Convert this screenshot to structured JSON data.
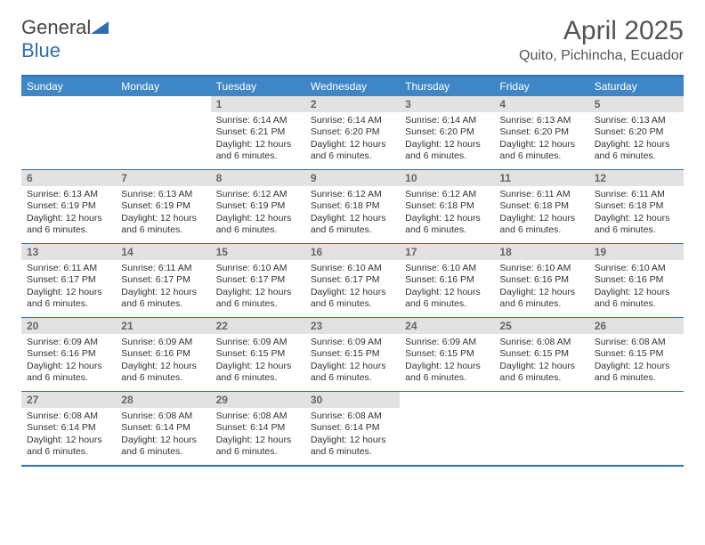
{
  "logo": {
    "part1": "General",
    "part2": "Blue"
  },
  "title": "April 2025",
  "location": "Quito, Pichincha, Ecuador",
  "colors": {
    "header_bg": "#3e86c6",
    "border": "#2f6fb0",
    "daynum_bg": "#e2e2e2",
    "text": "#333333",
    "muted": "#666666"
  },
  "day_headers": [
    "Sunday",
    "Monday",
    "Tuesday",
    "Wednesday",
    "Thursday",
    "Friday",
    "Saturday"
  ],
  "weeks": [
    [
      {
        "day": "",
        "sunrise": "",
        "sunset": "",
        "daylight": ""
      },
      {
        "day": "",
        "sunrise": "",
        "sunset": "",
        "daylight": ""
      },
      {
        "day": "1",
        "sunrise": "Sunrise: 6:14 AM",
        "sunset": "Sunset: 6:21 PM",
        "daylight": "Daylight: 12 hours and 6 minutes."
      },
      {
        "day": "2",
        "sunrise": "Sunrise: 6:14 AM",
        "sunset": "Sunset: 6:20 PM",
        "daylight": "Daylight: 12 hours and 6 minutes."
      },
      {
        "day": "3",
        "sunrise": "Sunrise: 6:14 AM",
        "sunset": "Sunset: 6:20 PM",
        "daylight": "Daylight: 12 hours and 6 minutes."
      },
      {
        "day": "4",
        "sunrise": "Sunrise: 6:13 AM",
        "sunset": "Sunset: 6:20 PM",
        "daylight": "Daylight: 12 hours and 6 minutes."
      },
      {
        "day": "5",
        "sunrise": "Sunrise: 6:13 AM",
        "sunset": "Sunset: 6:20 PM",
        "daylight": "Daylight: 12 hours and 6 minutes."
      }
    ],
    [
      {
        "day": "6",
        "sunrise": "Sunrise: 6:13 AM",
        "sunset": "Sunset: 6:19 PM",
        "daylight": "Daylight: 12 hours and 6 minutes."
      },
      {
        "day": "7",
        "sunrise": "Sunrise: 6:13 AM",
        "sunset": "Sunset: 6:19 PM",
        "daylight": "Daylight: 12 hours and 6 minutes."
      },
      {
        "day": "8",
        "sunrise": "Sunrise: 6:12 AM",
        "sunset": "Sunset: 6:19 PM",
        "daylight": "Daylight: 12 hours and 6 minutes."
      },
      {
        "day": "9",
        "sunrise": "Sunrise: 6:12 AM",
        "sunset": "Sunset: 6:18 PM",
        "daylight": "Daylight: 12 hours and 6 minutes."
      },
      {
        "day": "10",
        "sunrise": "Sunrise: 6:12 AM",
        "sunset": "Sunset: 6:18 PM",
        "daylight": "Daylight: 12 hours and 6 minutes."
      },
      {
        "day": "11",
        "sunrise": "Sunrise: 6:11 AM",
        "sunset": "Sunset: 6:18 PM",
        "daylight": "Daylight: 12 hours and 6 minutes."
      },
      {
        "day": "12",
        "sunrise": "Sunrise: 6:11 AM",
        "sunset": "Sunset: 6:18 PM",
        "daylight": "Daylight: 12 hours and 6 minutes."
      }
    ],
    [
      {
        "day": "13",
        "sunrise": "Sunrise: 6:11 AM",
        "sunset": "Sunset: 6:17 PM",
        "daylight": "Daylight: 12 hours and 6 minutes."
      },
      {
        "day": "14",
        "sunrise": "Sunrise: 6:11 AM",
        "sunset": "Sunset: 6:17 PM",
        "daylight": "Daylight: 12 hours and 6 minutes."
      },
      {
        "day": "15",
        "sunrise": "Sunrise: 6:10 AM",
        "sunset": "Sunset: 6:17 PM",
        "daylight": "Daylight: 12 hours and 6 minutes."
      },
      {
        "day": "16",
        "sunrise": "Sunrise: 6:10 AM",
        "sunset": "Sunset: 6:17 PM",
        "daylight": "Daylight: 12 hours and 6 minutes."
      },
      {
        "day": "17",
        "sunrise": "Sunrise: 6:10 AM",
        "sunset": "Sunset: 6:16 PM",
        "daylight": "Daylight: 12 hours and 6 minutes."
      },
      {
        "day": "18",
        "sunrise": "Sunrise: 6:10 AM",
        "sunset": "Sunset: 6:16 PM",
        "daylight": "Daylight: 12 hours and 6 minutes."
      },
      {
        "day": "19",
        "sunrise": "Sunrise: 6:10 AM",
        "sunset": "Sunset: 6:16 PM",
        "daylight": "Daylight: 12 hours and 6 minutes."
      }
    ],
    [
      {
        "day": "20",
        "sunrise": "Sunrise: 6:09 AM",
        "sunset": "Sunset: 6:16 PM",
        "daylight": "Daylight: 12 hours and 6 minutes."
      },
      {
        "day": "21",
        "sunrise": "Sunrise: 6:09 AM",
        "sunset": "Sunset: 6:16 PM",
        "daylight": "Daylight: 12 hours and 6 minutes."
      },
      {
        "day": "22",
        "sunrise": "Sunrise: 6:09 AM",
        "sunset": "Sunset: 6:15 PM",
        "daylight": "Daylight: 12 hours and 6 minutes."
      },
      {
        "day": "23",
        "sunrise": "Sunrise: 6:09 AM",
        "sunset": "Sunset: 6:15 PM",
        "daylight": "Daylight: 12 hours and 6 minutes."
      },
      {
        "day": "24",
        "sunrise": "Sunrise: 6:09 AM",
        "sunset": "Sunset: 6:15 PM",
        "daylight": "Daylight: 12 hours and 6 minutes."
      },
      {
        "day": "25",
        "sunrise": "Sunrise: 6:08 AM",
        "sunset": "Sunset: 6:15 PM",
        "daylight": "Daylight: 12 hours and 6 minutes."
      },
      {
        "day": "26",
        "sunrise": "Sunrise: 6:08 AM",
        "sunset": "Sunset: 6:15 PM",
        "daylight": "Daylight: 12 hours and 6 minutes."
      }
    ],
    [
      {
        "day": "27",
        "sunrise": "Sunrise: 6:08 AM",
        "sunset": "Sunset: 6:14 PM",
        "daylight": "Daylight: 12 hours and 6 minutes."
      },
      {
        "day": "28",
        "sunrise": "Sunrise: 6:08 AM",
        "sunset": "Sunset: 6:14 PM",
        "daylight": "Daylight: 12 hours and 6 minutes."
      },
      {
        "day": "29",
        "sunrise": "Sunrise: 6:08 AM",
        "sunset": "Sunset: 6:14 PM",
        "daylight": "Daylight: 12 hours and 6 minutes."
      },
      {
        "day": "30",
        "sunrise": "Sunrise: 6:08 AM",
        "sunset": "Sunset: 6:14 PM",
        "daylight": "Daylight: 12 hours and 6 minutes."
      },
      {
        "day": "",
        "sunrise": "",
        "sunset": "",
        "daylight": ""
      },
      {
        "day": "",
        "sunrise": "",
        "sunset": "",
        "daylight": ""
      },
      {
        "day": "",
        "sunrise": "",
        "sunset": "",
        "daylight": ""
      }
    ]
  ]
}
